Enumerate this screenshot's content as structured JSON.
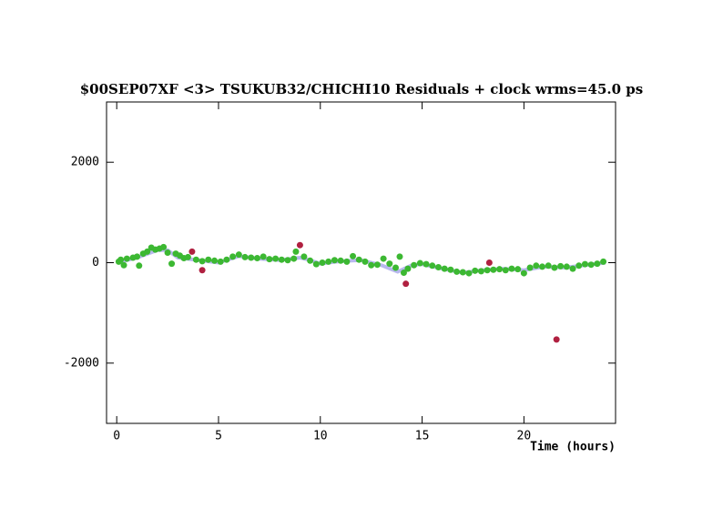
{
  "chart_data": {
    "type": "scatter",
    "title": "$00SEP07XF <3> TSUKUB32/CHICHI10 Residuals + clock wrms=45.0  ps",
    "x_label": "Time (hours)",
    "xlim": [
      -0.5,
      24.5
    ],
    "ylim": [
      -3200,
      3200
    ],
    "xticks": [
      0,
      5,
      10,
      15,
      20
    ],
    "yticks": [
      -2000,
      0,
      2000
    ],
    "model": {
      "color": "#b8b8ee",
      "x": [
        0,
        1,
        2,
        2.5,
        3,
        4,
        5,
        6,
        7,
        8,
        9,
        9.5,
        10,
        11,
        12,
        13,
        13.8,
        14.5,
        15,
        16,
        17,
        18,
        19,
        20,
        21,
        22,
        23,
        24
      ],
      "values": [
        0,
        100,
        250,
        250,
        100,
        50,
        0,
        130,
        80,
        50,
        100,
        50,
        -20,
        30,
        50,
        -50,
        -180,
        -50,
        -30,
        -120,
        -200,
        -150,
        -120,
        -150,
        -80,
        -100,
        -50,
        0
      ]
    },
    "series": [
      {
        "color": "#3cb832",
        "x": [
          0.1,
          0.2,
          0.35,
          0.5,
          0.8,
          1.0,
          1.1,
          1.3,
          1.5,
          1.7,
          1.9,
          2.1,
          2.3,
          2.5,
          2.7,
          2.9,
          3.1,
          3.3,
          3.5,
          3.9,
          4.2,
          4.5,
          4.8,
          5.1,
          5.4,
          5.7,
          6.0,
          6.3,
          6.6,
          6.9,
          7.2,
          7.5,
          7.8,
          8.1,
          8.4,
          8.7,
          8.8,
          9.2,
          9.5,
          9.8,
          10.1,
          10.4,
          10.7,
          11.0,
          11.3,
          11.6,
          11.9,
          12.2,
          12.5,
          12.8,
          13.1,
          13.4,
          13.7,
          13.9,
          14.1,
          14.3,
          14.6,
          14.9,
          15.2,
          15.5,
          15.8,
          16.1,
          16.4,
          16.7,
          17.0,
          17.3,
          17.6,
          17.9,
          18.2,
          18.5,
          18.8,
          19.1,
          19.4,
          19.7,
          20.0,
          20.3,
          20.6,
          20.9,
          21.2,
          21.5,
          21.8,
          22.1,
          22.4,
          22.7,
          23.0,
          23.3,
          23.6,
          23.9
        ],
        "values": [
          20,
          60,
          -50,
          80,
          100,
          120,
          -60,
          180,
          220,
          300,
          260,
          280,
          310,
          200,
          -20,
          180,
          140,
          90,
          110,
          60,
          30,
          60,
          40,
          20,
          60,
          120,
          160,
          110,
          100,
          90,
          120,
          70,
          80,
          60,
          50,
          80,
          220,
          120,
          40,
          -30,
          0,
          20,
          50,
          40,
          20,
          130,
          60,
          20,
          -50,
          -40,
          80,
          -20,
          -100,
          120,
          -200,
          -120,
          -50,
          -10,
          -30,
          -60,
          -90,
          -120,
          -140,
          -180,
          -190,
          -210,
          -160,
          -170,
          -150,
          -140,
          -130,
          -150,
          -120,
          -130,
          -210,
          -100,
          -60,
          -80,
          -60,
          -100,
          -70,
          -80,
          -120,
          -60,
          -30,
          -40,
          -20,
          20
        ]
      },
      {
        "color": "#b02040",
        "x": [
          3.7,
          4.2,
          9.0,
          14.2,
          18.3,
          21.6
        ],
        "values": [
          220,
          -150,
          350,
          -420,
          0,
          -1530
        ]
      }
    ]
  }
}
